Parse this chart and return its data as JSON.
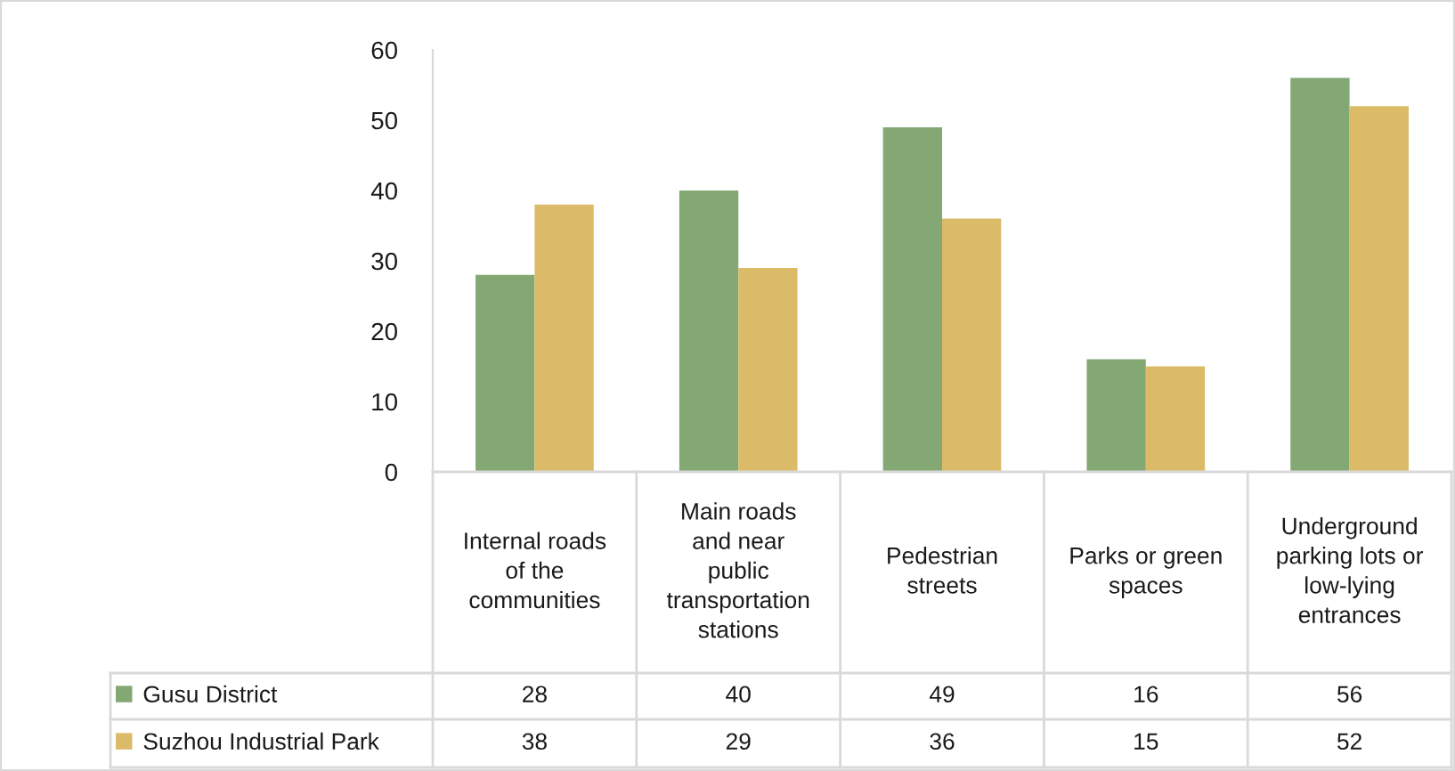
{
  "chart_data": {
    "type": "bar",
    "categories": [
      "Internal roads\nof the\ncommunities",
      "Main roads\nand near\npublic\ntransportation\nstations",
      "Pedestrian\nstreets",
      "Parks or green\nspaces",
      "Underground\nparking lots or\nlow-lying\nentrances"
    ],
    "series": [
      {
        "name": "Gusu District",
        "color": "#84a874",
        "values": [
          28,
          40,
          49,
          16,
          56
        ]
      },
      {
        "name": "Suzhou Industrial Park",
        "color": "#dbbb68",
        "values": [
          38,
          29,
          36,
          15,
          52
        ]
      }
    ],
    "ylim": [
      0,
      60
    ],
    "yticks": [
      0,
      10,
      20,
      30,
      40,
      50,
      60
    ],
    "legend": "bottom",
    "data_labels": true
  }
}
